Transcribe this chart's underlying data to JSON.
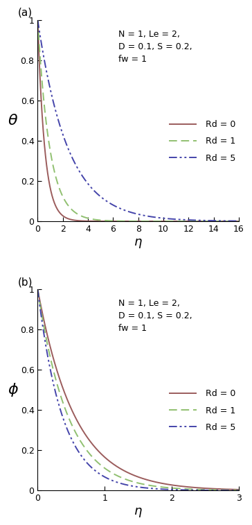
{
  "panel_a": {
    "label": "(a)",
    "ylabel": "θ",
    "xlabel": "η",
    "xlim": [
      0,
      16
    ],
    "ylim": [
      0,
      1
    ],
    "xticks": [
      0,
      2,
      4,
      6,
      8,
      10,
      12,
      14,
      16
    ],
    "yticks": [
      0,
      0.2,
      0.4,
      0.6,
      0.8,
      1.0
    ],
    "ytick_labels": [
      "0",
      "0.2",
      "0.4",
      "0.6",
      "0.8",
      "1"
    ],
    "annotation": "N = 1, Le = 2,\nD = 0.1, S = 0.2,\nfw = 1",
    "curves": [
      {
        "decay": 1.8,
        "color": "#9B5C5C",
        "linestyle": "solid",
        "label": "Rd = 0"
      },
      {
        "decay": 1.05,
        "color": "#90C070",
        "linestyle": "dashed",
        "label": "Rd = 1"
      },
      {
        "decay": 0.42,
        "color": "#4444AA",
        "linestyle": "dashdot",
        "label": "Rd = 5"
      }
    ]
  },
  "panel_b": {
    "label": "(b)",
    "ylabel": "ϕ",
    "xlabel": "η",
    "xlim": [
      0,
      3
    ],
    "ylim": [
      0,
      1
    ],
    "xticks": [
      0,
      1,
      2,
      3
    ],
    "yticks": [
      0,
      0.2,
      0.4,
      0.6,
      0.8,
      1.0
    ],
    "ytick_labels": [
      "0",
      "0.2",
      "0.4",
      "0.6",
      "0.8",
      "1"
    ],
    "annotation": "N = 1, Le = 2,\nD = 0.1, S = 0.2,\nfw = 1",
    "curves": [
      {
        "decay": 1.8,
        "color": "#9B5C5C",
        "linestyle": "solid",
        "label": "Rd = 0"
      },
      {
        "decay": 2.2,
        "color": "#90C070",
        "linestyle": "dashed",
        "label": "Rd = 1"
      },
      {
        "decay": 2.7,
        "color": "#4444AA",
        "linestyle": "dashdot",
        "label": "Rd = 5"
      }
    ]
  },
  "bg_color": "#ffffff",
  "linewidth": 1.4
}
